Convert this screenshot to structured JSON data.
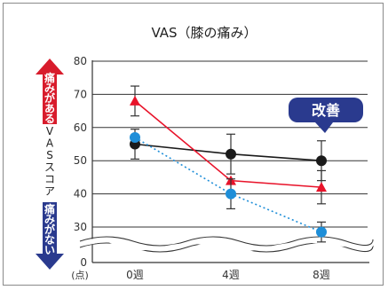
{
  "chart_data": {
    "type": "line",
    "title": "VAS（膝の痛み）",
    "categories": [
      "0週",
      "4週",
      "8週"
    ],
    "y_axis": {
      "ticks": [
        0,
        30,
        40,
        50,
        60,
        70,
        80
      ],
      "unit": "(点)",
      "axis_break": "between 0 and 30"
    },
    "ylabel_top": "痛みがある",
    "ylabel_middle": "VASスコア",
    "ylabel_bottom": "痛みがない",
    "annotation": "改善",
    "grid": true,
    "colors": {
      "black": "#1a1a1a",
      "red": "#e8132a",
      "blue": "#1e8ed8",
      "navy": "#2a3a8e",
      "axis_red": "#d81c2c"
    },
    "series": [
      {
        "color": "#1a1a1a",
        "marker": "circle",
        "line": "solid",
        "values": [
          55,
          52,
          50
        ],
        "errors": [
          4.5,
          6,
          6
        ]
      },
      {
        "color": "#e8132a",
        "marker": "triangle",
        "line": "solid",
        "values": [
          68,
          44,
          42
        ],
        "errors": [
          4.5,
          0,
          5
        ]
      },
      {
        "color": "#1e8ed8",
        "marker": "circle",
        "line": "dotted",
        "values": [
          57,
          40,
          28.5
        ],
        "errors": [
          0,
          4.5,
          3
        ]
      }
    ]
  }
}
